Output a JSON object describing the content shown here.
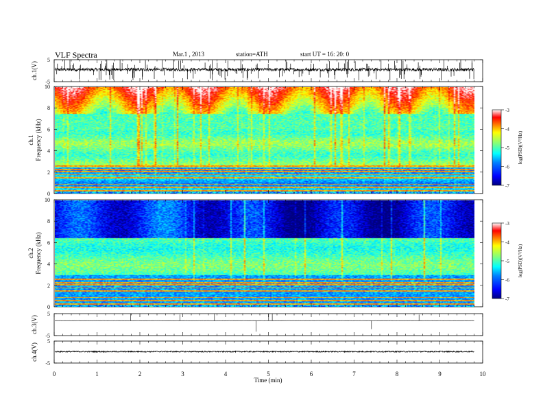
{
  "header": {
    "title": "VLF  Spectra",
    "date": "Mar.1  , 2013",
    "station": "station=ATH",
    "start": "start  UT  =    16: 20: 0"
  },
  "chart_data": [
    {
      "id": "ch1-waveform",
      "type": "line",
      "ylabel": "ch.1(V)",
      "ylim": [
        -5,
        5
      ],
      "y_ticks": [
        "5",
        "-5"
      ],
      "baseline": 0.5,
      "noise": 0.7,
      "spike_count": 150
    },
    {
      "id": "ch1-spectrogram",
      "type": "heatmap",
      "ylabel_line1": "ch.1",
      "ylabel_line2": "Frequency  (kHz)",
      "ylim": [
        0,
        10
      ],
      "y_ticks": [
        "0",
        "2",
        "4",
        "6",
        "8",
        "10"
      ],
      "x_extent_min": 9.8,
      "colorbar": {
        "label": "log(PSD)(V²/Hz)",
        "ticks": [
          "-3",
          "-4",
          "-5",
          "-6",
          "-7"
        ],
        "range": [
          -7,
          -3
        ]
      }
    },
    {
      "id": "ch2-spectrogram",
      "type": "heatmap",
      "ylabel_line1": "ch.2",
      "ylabel_line2": "Frequency  (kHz)",
      "ylim": [
        0,
        10
      ],
      "y_ticks": [
        "0",
        "2",
        "4",
        "6",
        "8",
        "10"
      ],
      "x_extent_min": 9.8,
      "colorbar": {
        "label": "log(PSD)(V²/Hz)",
        "ticks": [
          "-3",
          "-4",
          "-5",
          "-6",
          "-7"
        ],
        "range": [
          -7,
          -3
        ]
      }
    },
    {
      "id": "ch3-waveform",
      "type": "line",
      "ylabel": "ch.3(V)",
      "ylim": [
        -5,
        5
      ],
      "y_ticks": [
        "5",
        "-5"
      ],
      "baseline": 1.8,
      "noise": 0.05,
      "spike_count": 8
    },
    {
      "id": "ch4-waveform",
      "type": "line",
      "ylabel": "ch.4(V)",
      "ylim": [
        -5,
        5
      ],
      "y_ticks": [
        "5",
        "-5"
      ],
      "baseline": 0.2,
      "noise": 0.25,
      "spike_count": 0
    }
  ],
  "x_axis": {
    "label": "Time  (min)",
    "range": [
      0,
      10
    ],
    "ticks": [
      "0",
      "1",
      "2",
      "3",
      "4",
      "5",
      "6",
      "7",
      "8",
      "9",
      "10"
    ]
  },
  "colors": {
    "colormap": [
      "#00007f",
      "#0000ff",
      "#007fff",
      "#00ffff",
      "#7fff7f",
      "#ffff00",
      "#ff7f00",
      "#ff0000",
      "#ffffff"
    ]
  }
}
